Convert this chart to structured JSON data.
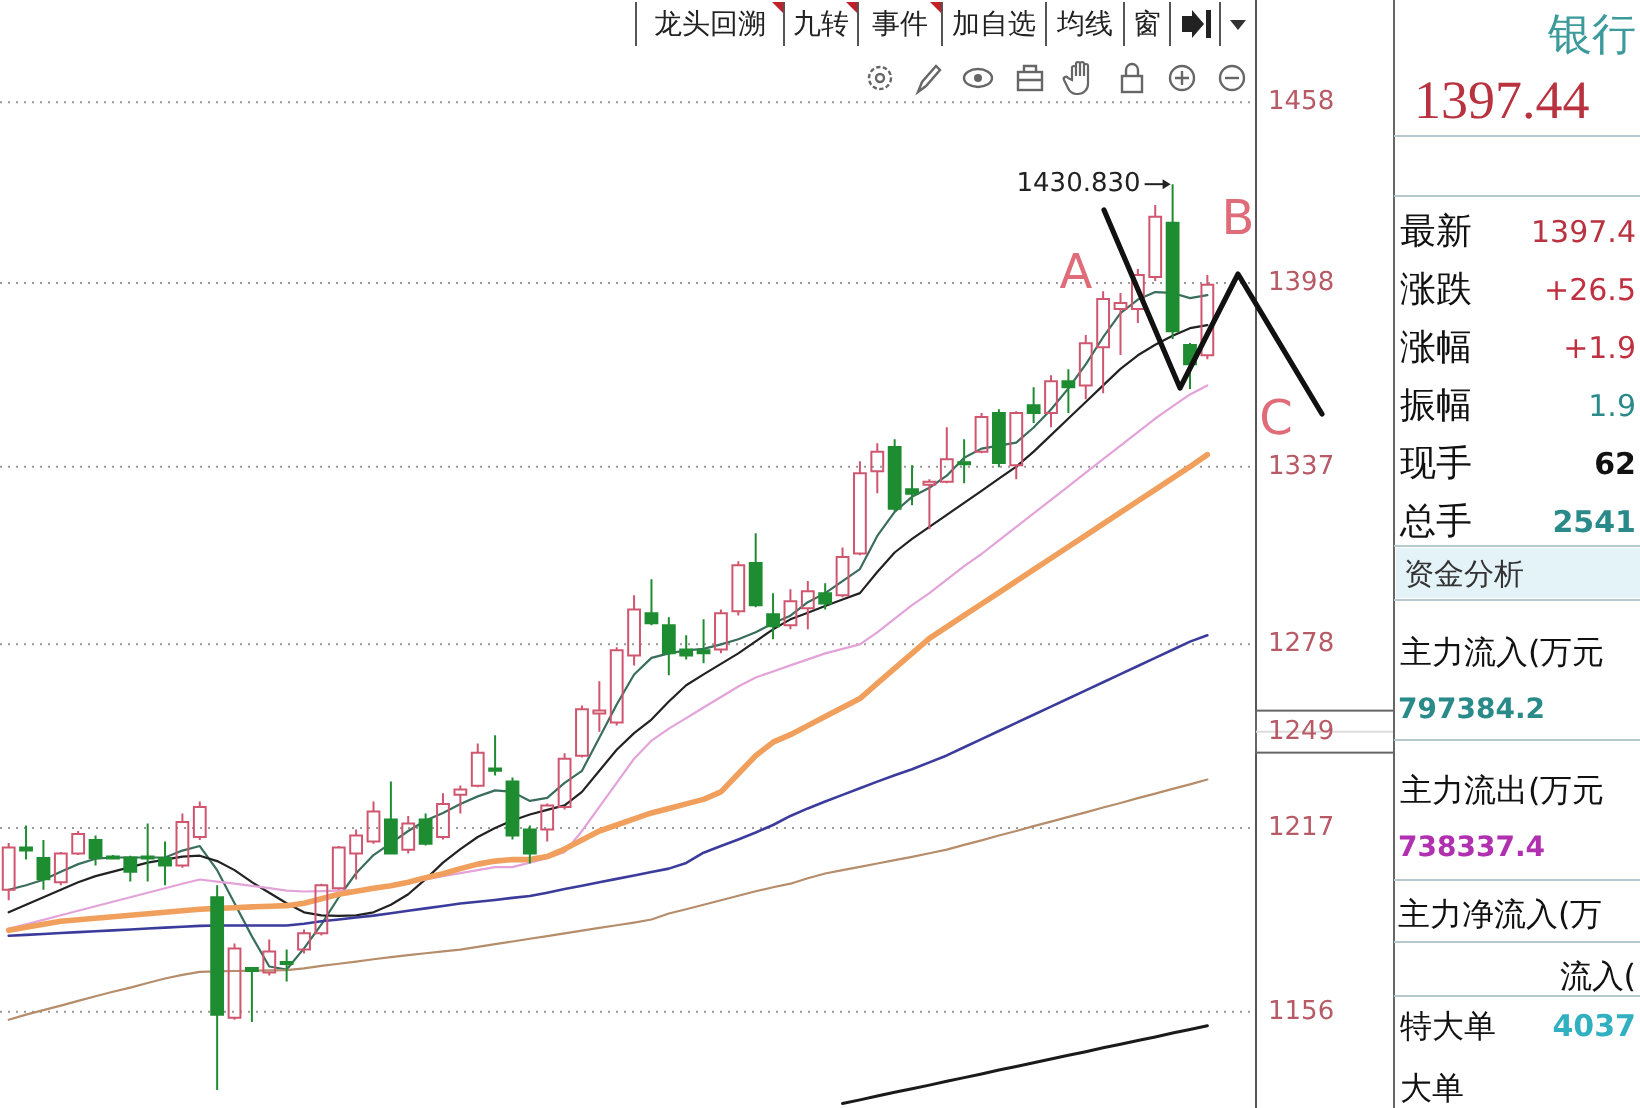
{
  "chart_data": [
    {
      "type": "candlestick",
      "categories": [
        null,
        null,
        null,
        null,
        null,
        null,
        null,
        null,
        null,
        null,
        null,
        null,
        null,
        null,
        null,
        null,
        null,
        null,
        null,
        null,
        null,
        null,
        null,
        null,
        null,
        null,
        null,
        null,
        null,
        null,
        null,
        null,
        null,
        null,
        null,
        null,
        null,
        null,
        null,
        null,
        null,
        null,
        null,
        null,
        null,
        null,
        null,
        null,
        null,
        null,
        null,
        null,
        null,
        null,
        null,
        null,
        null,
        null,
        null,
        null,
        null,
        null,
        null,
        null,
        null,
        null,
        null,
        null,
        null,
        null
      ],
      "ohlc": [
        [
          1196.5,
          1212,
          1193,
          1210.5
        ],
        [
          1210.5,
          1217.8,
          1206.5,
          1209.5
        ],
        [
          1207,
          1213,
          1196.5,
          1200
        ],
        [
          1199,
          1209,
          1198,
          1208.5
        ],
        [
          1208.5,
          1216,
          1208,
          1215
        ],
        [
          1213,
          1214.5,
          1204.5,
          1207
        ],
        [
          1207.5,
          1208,
          1206.5,
          1207
        ],
        [
          1207.2,
          1207.8,
          1199.2,
          1202.5
        ],
        [
          1207.5,
          1218.5,
          1199.2,
          1207
        ],
        [
          1207,
          1212.5,
          1198,
          1204.5
        ],
        [
          1204.5,
          1221.8,
          1203.8,
          1219
        ],
        [
          1214,
          1225.8,
          1213,
          1224
        ],
        [
          1194,
          1198,
          1130,
          1155
        ],
        [
          1154,
          1178.6,
          1153.3,
          1177
        ],
        [
          1170.5,
          1170.6,
          1152.6,
          1169.5
        ],
        [
          1169,
          1180,
          1168,
          1176
        ],
        [
          1172.5,
          1176.6,
          1166,
          1172
        ],
        [
          1176.6,
          1183.3,
          1175.3,
          1182
        ],
        [
          1182,
          1198.5,
          1181.3,
          1198
        ],
        [
          1197,
          1211,
          1196.5,
          1210.5
        ],
        [
          1208.5,
          1216.5,
          1199.9,
          1214.5
        ],
        [
          1212.5,
          1225.8,
          1211.8,
          1222.5
        ],
        [
          1219.8,
          1232.4,
          1208.5,
          1208.5
        ],
        [
          1209.8,
          1221,
          1208.5,
          1218.5
        ],
        [
          1219.8,
          1221.8,
          1211.2,
          1211.8
        ],
        [
          1214,
          1228.5,
          1213.2,
          1225
        ],
        [
          1228,
          1231.1,
          1221.8,
          1229.8
        ],
        [
          1231,
          1245.1,
          1230.5,
          1242
        ],
        [
          1236.8,
          1247.8,
          1234.4,
          1236
        ],
        [
          1232.4,
          1233.8,
          1213.2,
          1214.5
        ],
        [
          1216.5,
          1217.8,
          1205.2,
          1208.5
        ],
        [
          1216.5,
          1225.1,
          1212.5,
          1224.5
        ],
        [
          1224,
          1241.8,
          1223.1,
          1240
        ],
        [
          1241,
          1257.7,
          1240.4,
          1256.4
        ],
        [
          1255,
          1265.7,
          1249,
          1256
        ],
        [
          1252,
          1277,
          1251,
          1276
        ],
        [
          1274.3,
          1294.3,
          1271,
          1289.6
        ],
        [
          1288.3,
          1299.6,
          1284.3,
          1285
        ],
        [
          1284.3,
          1287,
          1267.7,
          1275
        ],
        [
          1276.3,
          1281,
          1273,
          1274.3
        ],
        [
          1276,
          1286.3,
          1271.7,
          1275
        ],
        [
          1276.3,
          1289.6,
          1275,
          1288.3
        ],
        [
          1289,
          1305.6,
          1287.6,
          1304.3
        ],
        [
          1305,
          1314.9,
          1290.3,
          1291
        ],
        [
          1288,
          1295,
          1279.7,
          1284
        ],
        [
          1284.3,
          1296.3,
          1283,
          1292.3
        ],
        [
          1290,
          1299,
          1283,
          1295.6
        ],
        [
          1295,
          1298.3,
          1289.6,
          1291.6
        ],
        [
          1294.3,
          1310.2,
          1293.6,
          1307
        ],
        [
          1308.2,
          1338.8,
          1307.6,
          1334.8
        ],
        [
          1335.5,
          1344.8,
          1328.2,
          1342
        ],
        [
          1343.5,
          1346.1,
          1322.2,
          1323
        ],
        [
          1329.5,
          1337.5,
          1324.2,
          1328
        ],
        [
          1331,
          1332.8,
          1316.2,
          1332
        ],
        [
          1332,
          1350.1,
          1331.5,
          1339.5
        ],
        [
          1338.5,
          1346.1,
          1331.5,
          1338
        ],
        [
          1342,
          1354.8,
          1341.5,
          1353.5
        ],
        [
          1354.8,
          1356.1,
          1336.8,
          1338.2
        ],
        [
          1337.5,
          1355.4,
          1332.8,
          1354.8
        ],
        [
          1357.4,
          1363.4,
          1351.5,
          1354.8
        ],
        [
          1354.8,
          1367.4,
          1350.1,
          1365.4
        ],
        [
          1365.4,
          1369.4,
          1354.8,
          1363.4
        ],
        [
          1364,
          1380.7,
          1359.4,
          1378
        ],
        [
          1376.7,
          1395.3,
          1361.4,
          1392.7
        ],
        [
          1389.4,
          1394.7,
          1374.1,
          1391.4
        ],
        [
          1389.4,
          1402.7,
          1384.7,
          1400.7
        ],
        [
          1400,
          1423.9,
          1398.7,
          1420
        ],
        [
          1418,
          1430.83,
          1379.4,
          1382
        ],
        [
          1377.4,
          1378.1,
          1362.8,
          1371
        ],
        [
          1374,
          1400.7,
          1372.7,
          1397.4
        ]
      ],
      "colors": [
        "#d0566f",
        "#1e8c31",
        "#1e8c31",
        "#d0566f",
        "#d0566f",
        "#1e8c31",
        "#1e8c31",
        "#1e8c31",
        "#1e8c31",
        "#1e8c31",
        "#d0566f",
        "#d0566f",
        "#1e8c31",
        "#d0566f",
        "#1e8c31",
        "#d0566f",
        "#1e8c31",
        "#d0566f",
        "#d0566f",
        "#d0566f",
        "#d0566f",
        "#d0566f",
        "#1e8c31",
        "#d0566f",
        "#1e8c31",
        "#d0566f",
        "#d0566f",
        "#d0566f",
        "#1e8c31",
        "#1e8c31",
        "#1e8c31",
        "#d0566f",
        "#d0566f",
        "#d0566f",
        "#d0566f",
        "#d0566f",
        "#d0566f",
        "#1e8c31",
        "#1e8c31",
        "#1e8c31",
        "#1e8c31",
        "#d0566f",
        "#d0566f",
        "#1e8c31",
        "#1e8c31",
        "#d0566f",
        "#d0566f",
        "#1e8c31",
        "#d0566f",
        "#d0566f",
        "#d0566f",
        "#1e8c31",
        "#1e8c31",
        "#d0566f",
        "#d0566f",
        "#1e8c31",
        "#d0566f",
        "#1e8c31",
        "#d0566f",
        "#1e8c31",
        "#d0566f",
        "#1e8c31",
        "#d0566f",
        "#d0566f",
        "#d0566f",
        "#d0566f",
        "#d0566f",
        "#1e8c31",
        "#1e8c31",
        "#d0566f"
      ],
      "series": [
        {
          "type": "line",
          "color": "#3a6e5c",
          "values": [
            1196.5,
            1198,
            1199.8,
            1202.5,
            1205,
            1206.8,
            1207.2,
            1207.2,
            1207.2,
            1207.2,
            1209.5,
            1211,
            1203,
            1192,
            1181,
            1171,
            1170,
            1177,
            1185,
            1194,
            1202,
            1208,
            1212,
            1216,
            1219.5,
            1222,
            1225,
            1227.5,
            1229.5,
            1229,
            1226,
            1227,
            1232,
            1236,
            1247,
            1258,
            1268,
            1273.5,
            1275,
            1276,
            1276.5,
            1278,
            1279.7,
            1282,
            1285,
            1287.5,
            1292,
            1295,
            1299,
            1303,
            1314,
            1322,
            1327,
            1330,
            1334,
            1340,
            1343,
            1344,
            1345,
            1350,
            1356,
            1363,
            1371,
            1380,
            1388,
            1392.5,
            1395,
            1394.7,
            1393,
            1394
          ]
        },
        {
          "type": "line",
          "color": "#222222",
          "values": [
            1189,
            1191.5,
            1194,
            1196.5,
            1199,
            1201,
            1202.5,
            1204,
            1205.5,
            1206.5,
            1207.5,
            1207.8,
            1206,
            1203,
            1199,
            1195.5,
            1192,
            1189,
            1188,
            1187.8,
            1188,
            1189,
            1191.5,
            1195,
            1200,
            1205.5,
            1210,
            1214,
            1217,
            1219.5,
            1221.5,
            1223,
            1224.5,
            1229,
            1236,
            1243,
            1248.5,
            1253,
            1259,
            1264.4,
            1268,
            1271.5,
            1275,
            1279,
            1283,
            1286.3,
            1288.5,
            1290.7,
            1292.9,
            1295,
            1302,
            1308.5,
            1313,
            1317,
            1321,
            1325,
            1329,
            1333,
            1337,
            1342,
            1347.5,
            1353,
            1358.5,
            1364,
            1369.5,
            1374,
            1377.5,
            1380.5,
            1383,
            1384
          ]
        },
        {
          "type": "line",
          "color": "#e3a3d9",
          "values": [
            1183.5,
            1185,
            1186.5,
            1188,
            1189.5,
            1191,
            1192.5,
            1194,
            1195.5,
            1197,
            1198.5,
            1199.9,
            1199.2,
            1198.5,
            1197.8,
            1197,
            1196.2,
            1195.9,
            1196,
            1196.2,
            1196.3,
            1196.5,
            1197.5,
            1198.7,
            1199.9,
            1201,
            1202,
            1203,
            1204,
            1204,
            1205.5,
            1207,
            1209,
            1216,
            1224,
            1232,
            1240,
            1246,
            1250,
            1253.5,
            1257,
            1260.5,
            1264,
            1267,
            1269,
            1271,
            1273,
            1275,
            1276.5,
            1278,
            1282,
            1286.5,
            1291,
            1295,
            1299.5,
            1304,
            1308,
            1312.5,
            1317,
            1321.5,
            1326,
            1330.5,
            1335,
            1339.5,
            1344,
            1348.5,
            1353,
            1357,
            1361,
            1364
          ]
        },
        {
          "type": "line",
          "color": "#f0a05c",
          "values": [
            1183,
            1184,
            1185,
            1186,
            1186.5,
            1187,
            1187.5,
            1188,
            1188.5,
            1189,
            1189.5,
            1190,
            1190.3,
            1190.5,
            1190.8,
            1191,
            1191.2,
            1192,
            1193.5,
            1195,
            1196,
            1197,
            1197.8,
            1199,
            1200.5,
            1201.8,
            1203.5,
            1205,
            1206,
            1206.5,
            1206.5,
            1207.5,
            1210,
            1213,
            1216,
            1218,
            1220,
            1222,
            1223.5,
            1225,
            1226.5,
            1229,
            1235,
            1241,
            1245.5,
            1248,
            1251,
            1254,
            1257,
            1260,
            1265,
            1270,
            1275,
            1280,
            1283.8,
            1287.6,
            1291.4,
            1295.2,
            1299,
            1302.8,
            1306.6,
            1310.4,
            1314.2,
            1318,
            1321.8,
            1325.6,
            1329.4,
            1333.2,
            1337,
            1341
          ]
        },
        {
          "type": "line",
          "color": "#3b3b9c",
          "values": [
            1181.2,
            1181.5,
            1181.8,
            1182.1,
            1182.4,
            1182.7,
            1183,
            1183.3,
            1183.6,
            1183.9,
            1184.2,
            1184.5,
            1184.6,
            1184.6,
            1184.6,
            1184.6,
            1184.6,
            1185.2,
            1186,
            1186.6,
            1187.3,
            1187.9,
            1188.7,
            1189.5,
            1190.3,
            1191.1,
            1191.9,
            1192.5,
            1193.1,
            1193.8,
            1194.4,
            1195.5,
            1196.7,
            1197.8,
            1199,
            1200.1,
            1201.2,
            1202.4,
            1203.5,
            1205.4,
            1208.8,
            1211,
            1213.2,
            1215.5,
            1218,
            1221,
            1223.5,
            1225.8,
            1228,
            1230.2,
            1232.4,
            1234.5,
            1236.5,
            1238.8,
            1241.1,
            1243.8,
            1246.5,
            1249.2,
            1251.9,
            1254.6,
            1257.3,
            1260,
            1262.7,
            1265.4,
            1268.1,
            1270.8,
            1273.5,
            1276.2,
            1278.9,
            1281
          ]
        },
        {
          "type": "line",
          "color": "#b58d6a",
          "values": [
            1153.3,
            1155,
            1156.5,
            1158,
            1159.6,
            1161.1,
            1162.6,
            1164,
            1165.5,
            1167,
            1168.2,
            1169.2,
            1169.4,
            1169.5,
            1169.6,
            1169.7,
            1169.8,
            1170.4,
            1171.2,
            1171.9,
            1172.6,
            1173.4,
            1174.1,
            1174.8,
            1175.4,
            1176,
            1176.6,
            1177.5,
            1178.4,
            1179.3,
            1180.2,
            1181.1,
            1182,
            1182.9,
            1183.8,
            1184.7,
            1185.6,
            1186.6,
            1188.6,
            1190,
            1191.5,
            1193,
            1194.5,
            1196,
            1197.3,
            1198.5,
            1200.3,
            1201.9,
            1203,
            1204.1,
            1205.2,
            1206.3,
            1207.4,
            1208.6,
            1209.8,
            1211.4,
            1212.9,
            1214.5,
            1216,
            1217.6,
            1219.1,
            1220.7,
            1222.2,
            1223.8,
            1225.3,
            1226.9,
            1228.4,
            1230,
            1231.5,
            1233.1
          ]
        },
        {
          "type": "line",
          "color": "#1a1a1a",
          "values": [
            null,
            null,
            null,
            null,
            null,
            null,
            null,
            null,
            null,
            null,
            null,
            null,
            null,
            null,
            null,
            null,
            null,
            null,
            null,
            null,
            null,
            null,
            null,
            null,
            null,
            null,
            null,
            null,
            null,
            null,
            null,
            null,
            null,
            null,
            null,
            null,
            null,
            null,
            null,
            null,
            null,
            null,
            null,
            null,
            null,
            null,
            null,
            null,
            1125.5,
            1126.7,
            1128,
            1129.2,
            1130.4,
            1131.6,
            1132.9,
            1134.1,
            1135.3,
            1136.6,
            1137.8,
            1139,
            1140.3,
            1141.5,
            1142.7,
            1144,
            1145.2,
            1146.4,
            1147.6,
            1148.9,
            1150.1,
            1151.3
          ]
        }
      ],
      "ylim": [
        1124,
        1492
      ],
      "yticks": [
        1458,
        1398,
        1337,
        1278,
        1217,
        1156
      ],
      "grid": "y",
      "ref_lines": [
        {
          "axis": "y",
          "value": 1249,
          "label": "1249"
        }
      ],
      "annotations": [
        "1430.830",
        "龙头回溯",
        "九转",
        "事件",
        "加自选",
        "均线",
        "窗",
        "A",
        "B",
        "C"
      ]
    },
    {
      "type": "other",
      "title": "银行",
      "annotations": [
        "1397.44",
        "最新",
        "1397.4",
        "涨跌",
        "+26.5",
        "涨幅",
        "+1.9",
        "振幅",
        "1.9",
        "现手",
        "62",
        "总手",
        "2541",
        "资金分析",
        "主力流入(万元",
        "797384.2",
        "主力流出(万元",
        "738337.4",
        "主力净流入(万",
        "流入(",
        "特大单",
        "4037",
        "大单"
      ]
    }
  ]
}
